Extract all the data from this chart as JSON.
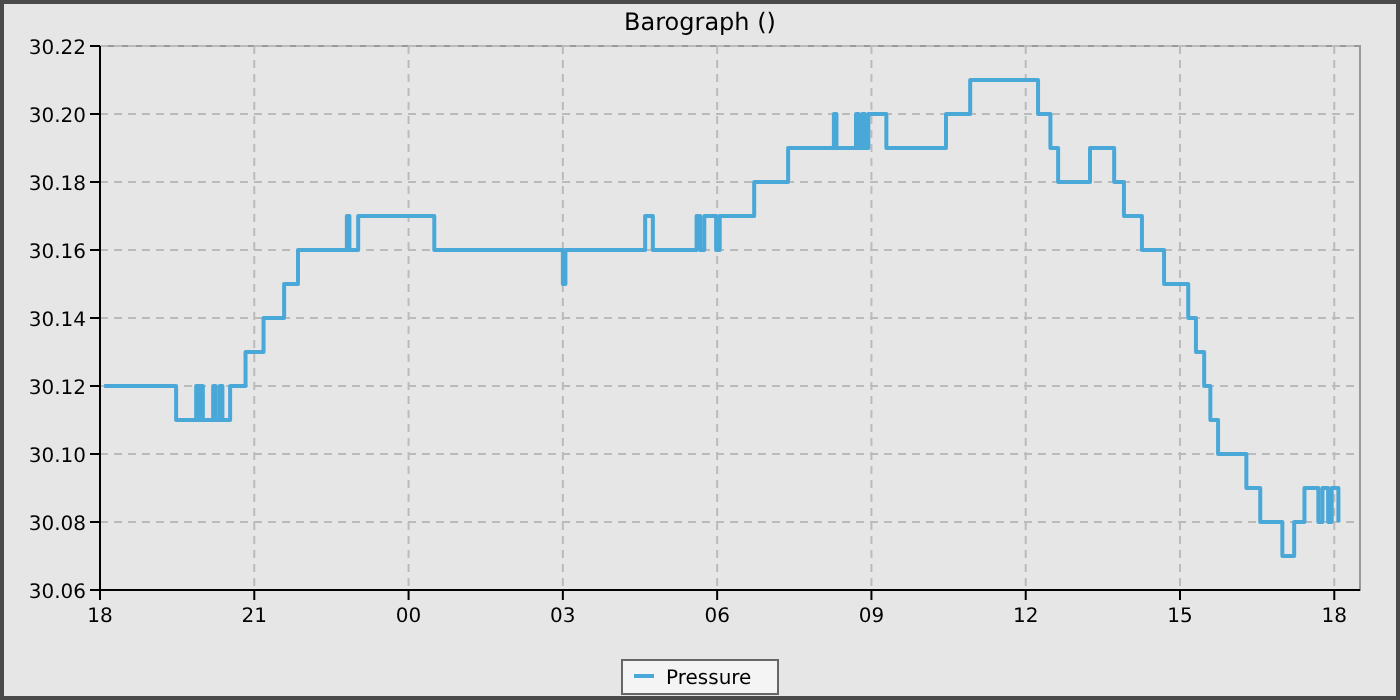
{
  "chart_data": {
    "type": "step",
    "title": "Barograph ()",
    "legend": "bottom",
    "grid": true,
    "marker": "none",
    "line_style": "solid",
    "xlim": [
      18,
      42.5
    ],
    "ylim": [
      30.06,
      30.22
    ],
    "xticks": [
      {
        "value": 18,
        "label": "18"
      },
      {
        "value": 21,
        "label": "21"
      },
      {
        "value": 24,
        "label": "00"
      },
      {
        "value": 27,
        "label": "03"
      },
      {
        "value": 30,
        "label": "06"
      },
      {
        "value": 33,
        "label": "09"
      },
      {
        "value": 36,
        "label": "12"
      },
      {
        "value": 39,
        "label": "15"
      },
      {
        "value": 42,
        "label": "18"
      }
    ],
    "yticks": [
      {
        "value": 30.06,
        "label": "30.06"
      },
      {
        "value": 30.08,
        "label": "30.08"
      },
      {
        "value": 30.1,
        "label": "30.10"
      },
      {
        "value": 30.12,
        "label": "30.12"
      },
      {
        "value": 30.14,
        "label": "30.14"
      },
      {
        "value": 30.16,
        "label": "30.16"
      },
      {
        "value": 30.18,
        "label": "30.18"
      },
      {
        "value": 30.2,
        "label": "30.20"
      },
      {
        "value": 30.22,
        "label": "30.22"
      }
    ],
    "series": [
      {
        "name": "Pressure",
        "color": "#4aa8d8",
        "x": [
          18.08,
          19.48,
          19.87,
          19.92,
          19.95,
          20.0,
          20.2,
          20.25,
          20.33,
          20.38,
          20.53,
          20.83,
          21.18,
          21.58,
          21.85,
          22.8,
          22.85,
          23.02,
          24.5,
          27.0,
          27.05,
          28.6,
          28.75,
          29.6,
          29.67,
          29.75,
          29.98,
          30.05,
          30.72,
          31.38,
          32.27,
          32.32,
          32.7,
          32.75,
          32.82,
          32.87,
          32.94,
          33.29,
          34.45,
          34.92,
          36.24,
          36.48,
          36.63,
          37.25,
          37.72,
          37.91,
          38.26,
          38.69,
          39.16,
          39.31,
          39.47,
          39.59,
          39.74,
          40.29,
          40.56,
          40.99,
          41.22,
          41.42,
          41.69,
          41.77,
          41.88,
          41.95,
          42.08
        ],
        "values": [
          30.12,
          30.11,
          30.12,
          30.11,
          30.12,
          30.11,
          30.12,
          30.11,
          30.12,
          30.11,
          30.12,
          30.13,
          30.14,
          30.15,
          30.16,
          30.17,
          30.16,
          30.17,
          30.16,
          30.15,
          30.16,
          30.17,
          30.16,
          30.17,
          30.16,
          30.17,
          30.16,
          30.17,
          30.18,
          30.19,
          30.2,
          30.19,
          30.2,
          30.19,
          30.2,
          30.19,
          30.2,
          30.19,
          30.2,
          30.21,
          30.2,
          30.19,
          30.18,
          30.19,
          30.18,
          30.17,
          30.16,
          30.15,
          30.14,
          30.13,
          30.12,
          30.11,
          30.1,
          30.09,
          30.08,
          30.07,
          30.08,
          30.09,
          30.08,
          30.09,
          30.08,
          30.09,
          30.08
        ]
      }
    ]
  }
}
